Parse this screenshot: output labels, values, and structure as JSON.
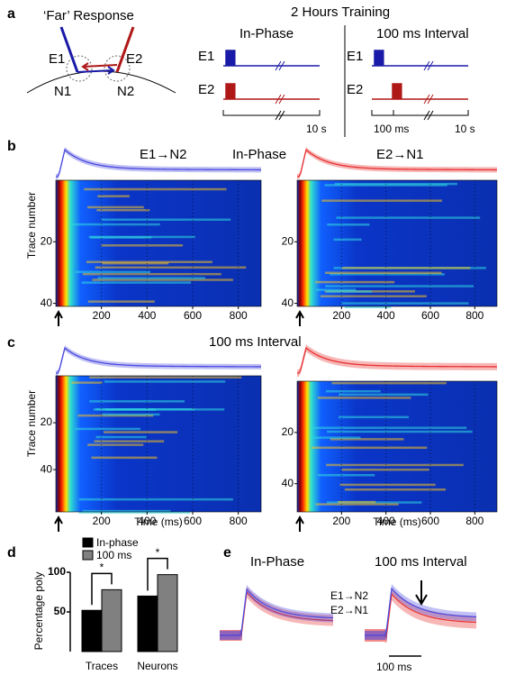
{
  "panel_a": {
    "label": "a",
    "diagram_title": "‘Far’ Response",
    "electrodes": [
      "E1",
      "E2"
    ],
    "neurons": [
      "N1",
      "N2"
    ],
    "training_title": "2 Hours Training",
    "protocols": [
      {
        "title": "In-Phase",
        "channels": [
          "E1",
          "E2"
        ],
        "scale": [
          "10 s"
        ]
      },
      {
        "title": "100 ms Interval",
        "channels": [
          "E1",
          "E2"
        ],
        "scale": [
          "100 ms",
          "10 s"
        ]
      }
    ]
  },
  "panel_b": {
    "label": "b",
    "title": "In-Phase",
    "pairs": [
      "E1→N2",
      "E2→N1"
    ],
    "ylabel": "Trace number",
    "heatmaps": [
      {
        "xlim": [
          0,
          900
        ],
        "xticks": [
          200,
          400,
          600,
          800
        ],
        "ylim": [
          0,
          41
        ],
        "yticks": [
          20,
          40
        ]
      },
      {
        "xlim": [
          0,
          900
        ],
        "xticks": [
          200,
          400,
          600,
          800
        ],
        "ylim": [
          0,
          41
        ],
        "yticks": [
          20,
          40
        ]
      }
    ]
  },
  "panel_c": {
    "label": "c",
    "title": "100 ms Interval",
    "ylabel": "Trace number",
    "xlabel": "Time (ms)",
    "heatmaps": [
      {
        "xlim": [
          0,
          900
        ],
        "xticks": [
          200,
          400,
          600,
          800
        ],
        "ylim": [
          0,
          58
        ],
        "yticks": [
          20,
          40
        ]
      },
      {
        "xlim": [
          0,
          900
        ],
        "xticks": [
          200,
          400,
          600,
          800
        ],
        "ylim": [
          0,
          51
        ],
        "yticks": [
          20,
          40
        ]
      }
    ]
  },
  "chart_data": {
    "type": "bar",
    "panel_label": "d",
    "ylabel": "Percentage poly",
    "categories": [
      "Traces",
      "Neurons"
    ],
    "series": [
      {
        "name": "In-phase",
        "color": "#000000",
        "values": [
          52,
          70
        ]
      },
      {
        "name": "100 ms",
        "color": "#808080",
        "values": [
          78,
          97
        ]
      }
    ],
    "ylim": [
      0,
      100
    ],
    "yticks": [
      50,
      100
    ],
    "annotations": [
      "*",
      "*"
    ]
  },
  "panel_e": {
    "label": "e",
    "titles": [
      "In-Phase",
      "100 ms Interval"
    ],
    "legend": [
      "E1→N2",
      "E2→N1"
    ],
    "scale": "100 ms"
  }
}
